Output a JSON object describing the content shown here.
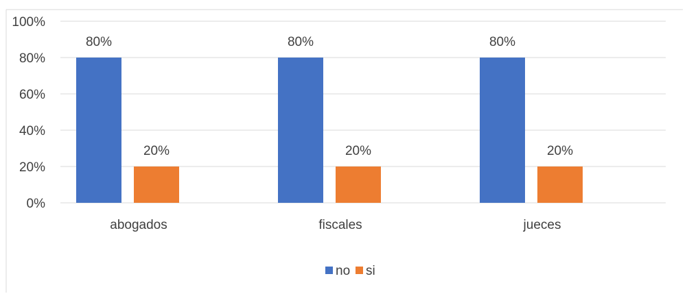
{
  "chart_data": {
    "type": "bar",
    "categories": [
      "abogados",
      "fiscales",
      "jueces"
    ],
    "series": [
      {
        "name": "no",
        "values": [
          80,
          80,
          80
        ],
        "color": "#4472c4"
      },
      {
        "name": "si",
        "values": [
          20,
          20,
          20
        ],
        "color": "#ed7d31"
      }
    ],
    "data_labels": [
      [
        "80%",
        "80%",
        "80%"
      ],
      [
        "20%",
        "20%",
        "20%"
      ]
    ],
    "y_ticks": [
      0,
      20,
      40,
      60,
      80,
      100
    ],
    "y_tick_labels": [
      "0%",
      "20%",
      "40%",
      "60%",
      "80%",
      "100%"
    ],
    "ylim": [
      0,
      100
    ],
    "y_unit": "%",
    "grid": true,
    "legend_position": "bottom",
    "title": "",
    "xlabel": "",
    "ylabel": ""
  },
  "colors": {
    "gridline": "#d9d9d9",
    "text": "#404040",
    "frame": "#d9d9d9"
  }
}
